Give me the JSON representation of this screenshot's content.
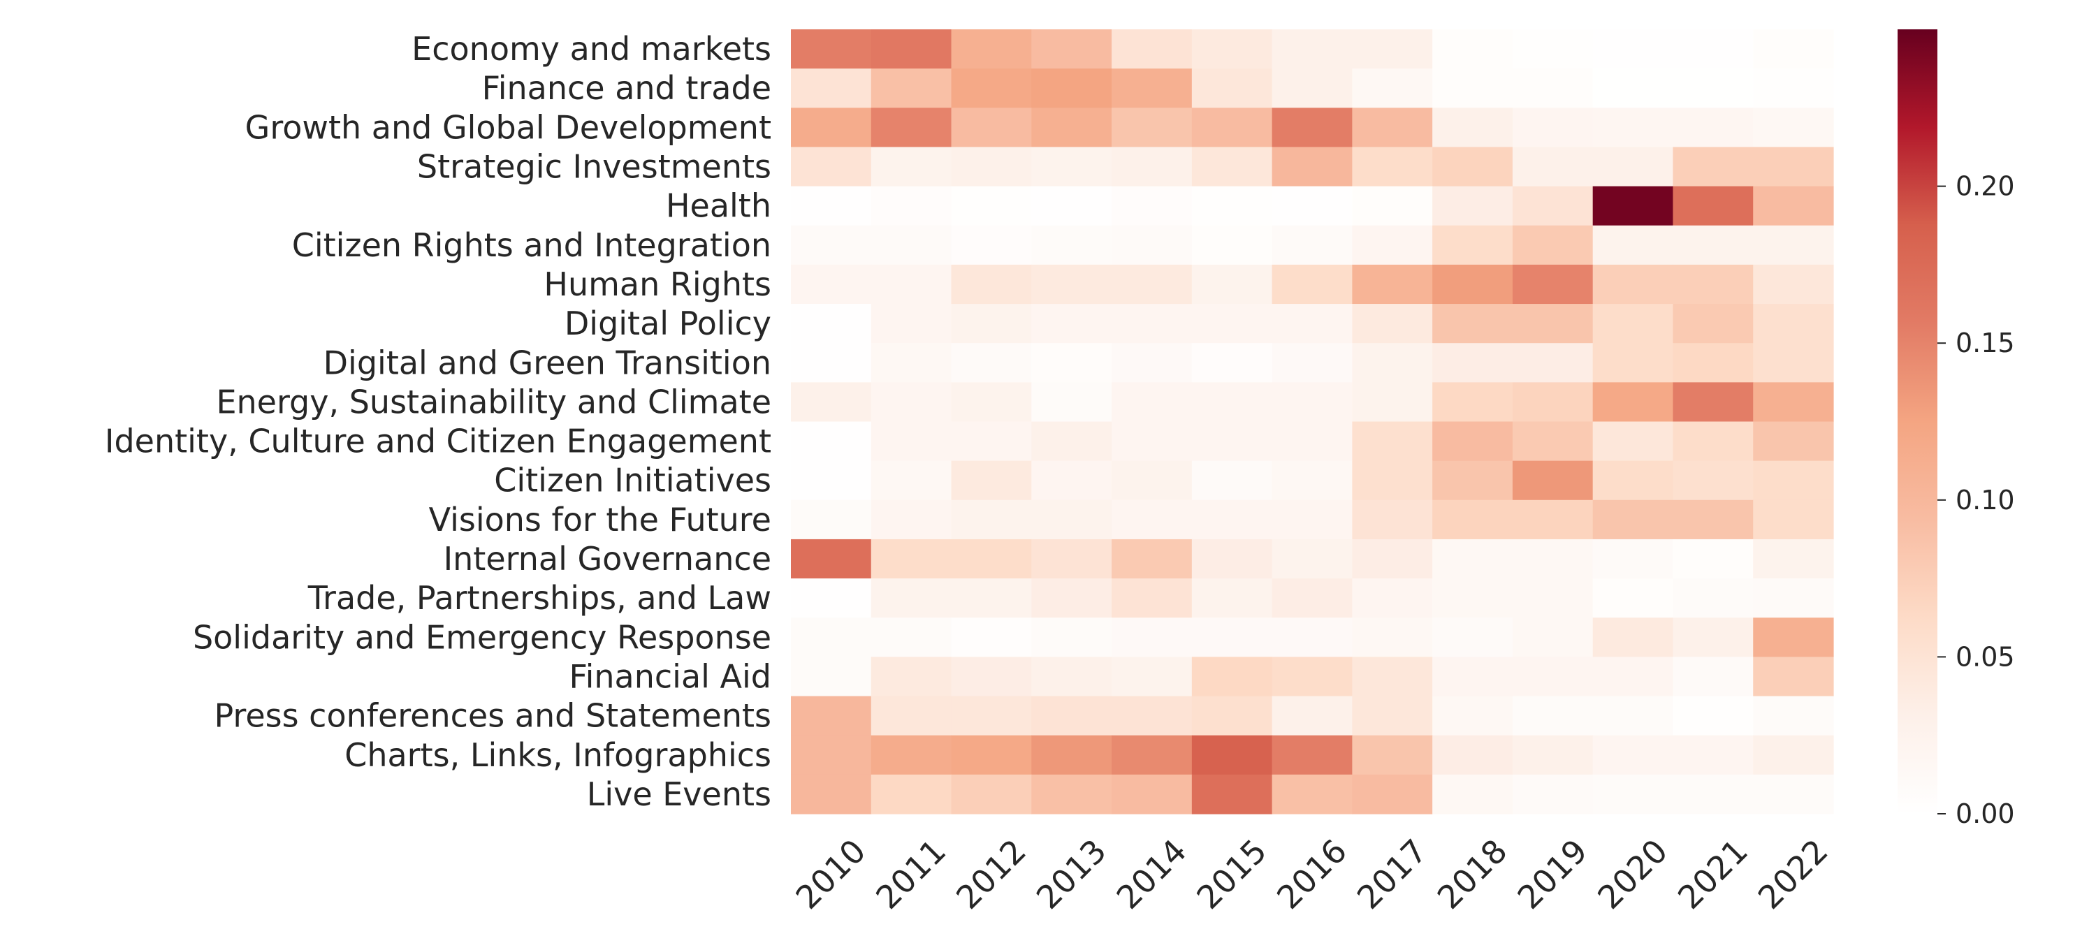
{
  "chart_data": {
    "type": "heatmap",
    "title": "",
    "xlabel": "",
    "ylabel": "",
    "colormap": "RdBu_r (positive half)",
    "colors": {
      "low": "#ffffff",
      "high": "#67001f"
    },
    "x_categories": [
      "2010",
      "2011",
      "2012",
      "2013",
      "2014",
      "2015",
      "2016",
      "2017",
      "2018",
      "2019",
      "2020",
      "2021",
      "2022"
    ],
    "y_categories": [
      "Economy and markets",
      "Finance and trade",
      "Growth and Global Development",
      "Strategic Investments",
      "Health",
      "Citizen Rights and Integration",
      "Human Rights",
      "Digital Policy",
      "Digital and Green Transition",
      "Energy, Sustainability and Climate",
      "Identity, Culture and Citizen Engagement",
      "Citizen Initiatives",
      "Visions for the Future",
      "Internal Governance",
      "Trade, Partnerships, and Law",
      "Solidarity and Emergency Response",
      "Financial Aid",
      "Press conferences and Statements",
      "Charts, Links, Infographics",
      "Live Events"
    ],
    "values": [
      [
        0.155,
        0.16,
        0.11,
        0.095,
        0.05,
        0.04,
        0.03,
        0.03,
        0.005,
        0.003,
        0.002,
        0.002,
        0.005
      ],
      [
        0.05,
        0.09,
        0.12,
        0.125,
        0.11,
        0.045,
        0.03,
        0.015,
        0.005,
        0.005,
        0.001,
        0.001,
        0.003
      ],
      [
        0.115,
        0.15,
        0.095,
        0.11,
        0.085,
        0.095,
        0.155,
        0.095,
        0.03,
        0.02,
        0.018,
        0.018,
        0.015
      ],
      [
        0.05,
        0.025,
        0.03,
        0.025,
        0.03,
        0.045,
        0.1,
        0.06,
        0.07,
        0.03,
        0.03,
        0.075,
        0.075
      ],
      [
        0.002,
        0.006,
        0.003,
        0.002,
        0.006,
        0.003,
        0.002,
        0.005,
        0.035,
        0.05,
        0.245,
        0.17,
        0.095
      ],
      [
        0.01,
        0.01,
        0.006,
        0.008,
        0.01,
        0.005,
        0.01,
        0.02,
        0.06,
        0.08,
        0.025,
        0.025,
        0.025
      ],
      [
        0.02,
        0.02,
        0.045,
        0.04,
        0.04,
        0.025,
        0.06,
        0.105,
        0.13,
        0.15,
        0.075,
        0.075,
        0.045
      ],
      [
        0.002,
        0.02,
        0.025,
        0.02,
        0.02,
        0.02,
        0.02,
        0.04,
        0.085,
        0.085,
        0.06,
        0.08,
        0.055
      ],
      [
        0.002,
        0.015,
        0.01,
        0.007,
        0.012,
        0.006,
        0.012,
        0.025,
        0.035,
        0.035,
        0.06,
        0.065,
        0.055
      ],
      [
        0.03,
        0.02,
        0.025,
        0.008,
        0.02,
        0.02,
        0.02,
        0.025,
        0.065,
        0.07,
        0.12,
        0.155,
        0.11
      ],
      [
        0.002,
        0.02,
        0.02,
        0.03,
        0.02,
        0.02,
        0.02,
        0.055,
        0.095,
        0.08,
        0.045,
        0.06,
        0.085
      ],
      [
        0.002,
        0.015,
        0.04,
        0.02,
        0.025,
        0.01,
        0.015,
        0.055,
        0.085,
        0.135,
        0.06,
        0.055,
        0.06
      ],
      [
        0.008,
        0.02,
        0.025,
        0.025,
        0.02,
        0.02,
        0.02,
        0.05,
        0.07,
        0.07,
        0.085,
        0.085,
        0.06
      ],
      [
        0.17,
        0.06,
        0.06,
        0.05,
        0.08,
        0.035,
        0.025,
        0.035,
        0.015,
        0.015,
        0.01,
        0.005,
        0.025
      ],
      [
        0.002,
        0.025,
        0.025,
        0.035,
        0.05,
        0.025,
        0.035,
        0.02,
        0.015,
        0.015,
        0.005,
        0.008,
        0.01
      ],
      [
        0.008,
        0.008,
        0.004,
        0.008,
        0.012,
        0.012,
        0.012,
        0.015,
        0.01,
        0.015,
        0.04,
        0.03,
        0.11
      ],
      [
        0.008,
        0.04,
        0.035,
        0.03,
        0.025,
        0.065,
        0.06,
        0.045,
        0.02,
        0.02,
        0.02,
        0.01,
        0.075
      ],
      [
        0.1,
        0.045,
        0.045,
        0.05,
        0.05,
        0.055,
        0.03,
        0.045,
        0.015,
        0.008,
        0.008,
        0.003,
        0.008
      ],
      [
        0.1,
        0.115,
        0.12,
        0.135,
        0.145,
        0.185,
        0.155,
        0.085,
        0.035,
        0.03,
        0.02,
        0.02,
        0.03
      ],
      [
        0.1,
        0.065,
        0.075,
        0.09,
        0.095,
        0.17,
        0.09,
        0.095,
        0.015,
        0.01,
        0.008,
        0.008,
        0.008
      ]
    ],
    "colorbar": {
      "vmin": 0.0,
      "vmax": 0.25,
      "ticks": [
        0.0,
        0.05,
        0.1,
        0.15,
        0.2
      ],
      "tick_labels": [
        "0.00",
        "0.05",
        "0.10",
        "0.15",
        "0.20"
      ]
    },
    "grid": false,
    "x_tick_rotation_deg": 45
  }
}
